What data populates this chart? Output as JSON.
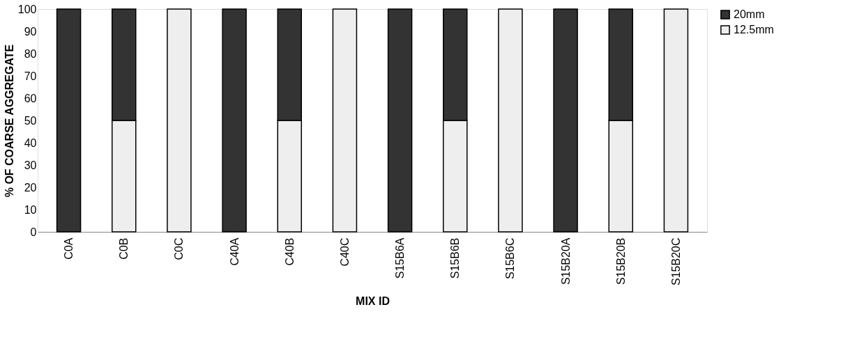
{
  "chart_data": {
    "type": "bar",
    "stacked": true,
    "xlabel": "MIX ID",
    "ylabel": "% OF COARSE AGGREGATE",
    "categories": [
      "C0A",
      "C0B",
      "C0C",
      "C40A",
      "C40B",
      "C40C",
      "S15B6A",
      "S15B6B",
      "S15B6C",
      "S15B20A",
      "S15B20B",
      "S15B20C"
    ],
    "series": [
      {
        "name": "12.5mm",
        "color": "#eeeeee",
        "values": [
          0,
          50,
          100,
          0,
          50,
          100,
          0,
          50,
          100,
          0,
          50,
          100
        ]
      },
      {
        "name": "20mm",
        "color": "#333333",
        "values": [
          100,
          50,
          0,
          100,
          50,
          0,
          100,
          50,
          0,
          100,
          50,
          0
        ]
      }
    ],
    "ylim": [
      0,
      100
    ],
    "yticks": [
      0,
      10,
      20,
      30,
      40,
      50,
      60,
      70,
      80,
      90,
      100
    ],
    "grid": false,
    "legend": "right"
  }
}
